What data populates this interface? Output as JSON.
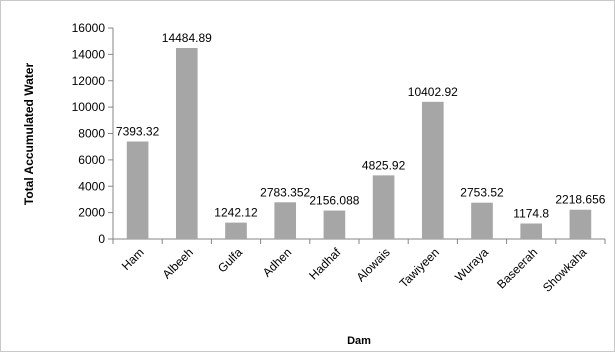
{
  "chart_data": {
    "type": "bar",
    "title": "",
    "xlabel": "Dam",
    "ylabel": "Total Accumulated Water",
    "categories": [
      "Ham",
      "Albeeh",
      "Gulfa",
      "Adhen",
      "Hadhaf",
      "Alowais",
      "Tawiyeen",
      "Wuraya",
      "Baseerah",
      "Showkaha"
    ],
    "values": [
      7393.32,
      14484.89,
      1242.12,
      2783.352,
      2156.088,
      4825.92,
      10402.92,
      2753.52,
      1174.8,
      2218.656
    ],
    "value_labels": [
      "7393.32",
      "14484.89",
      "1242.12",
      "2783.352",
      "2156.088",
      "4825.92",
      "10402.92",
      "2753.52",
      "1174.8",
      "2218.656"
    ],
    "ylim": [
      0,
      16000
    ],
    "yticks": [
      0,
      2000,
      4000,
      6000,
      8000,
      10000,
      12000,
      14000,
      16000
    ],
    "ytick_labels": [
      "0",
      "2000",
      "4000",
      "6000",
      "8000",
      "10000",
      "12000",
      "14000",
      "16000"
    ],
    "grid": false,
    "legend": "none",
    "bar_color": "#a6a6a6"
  }
}
